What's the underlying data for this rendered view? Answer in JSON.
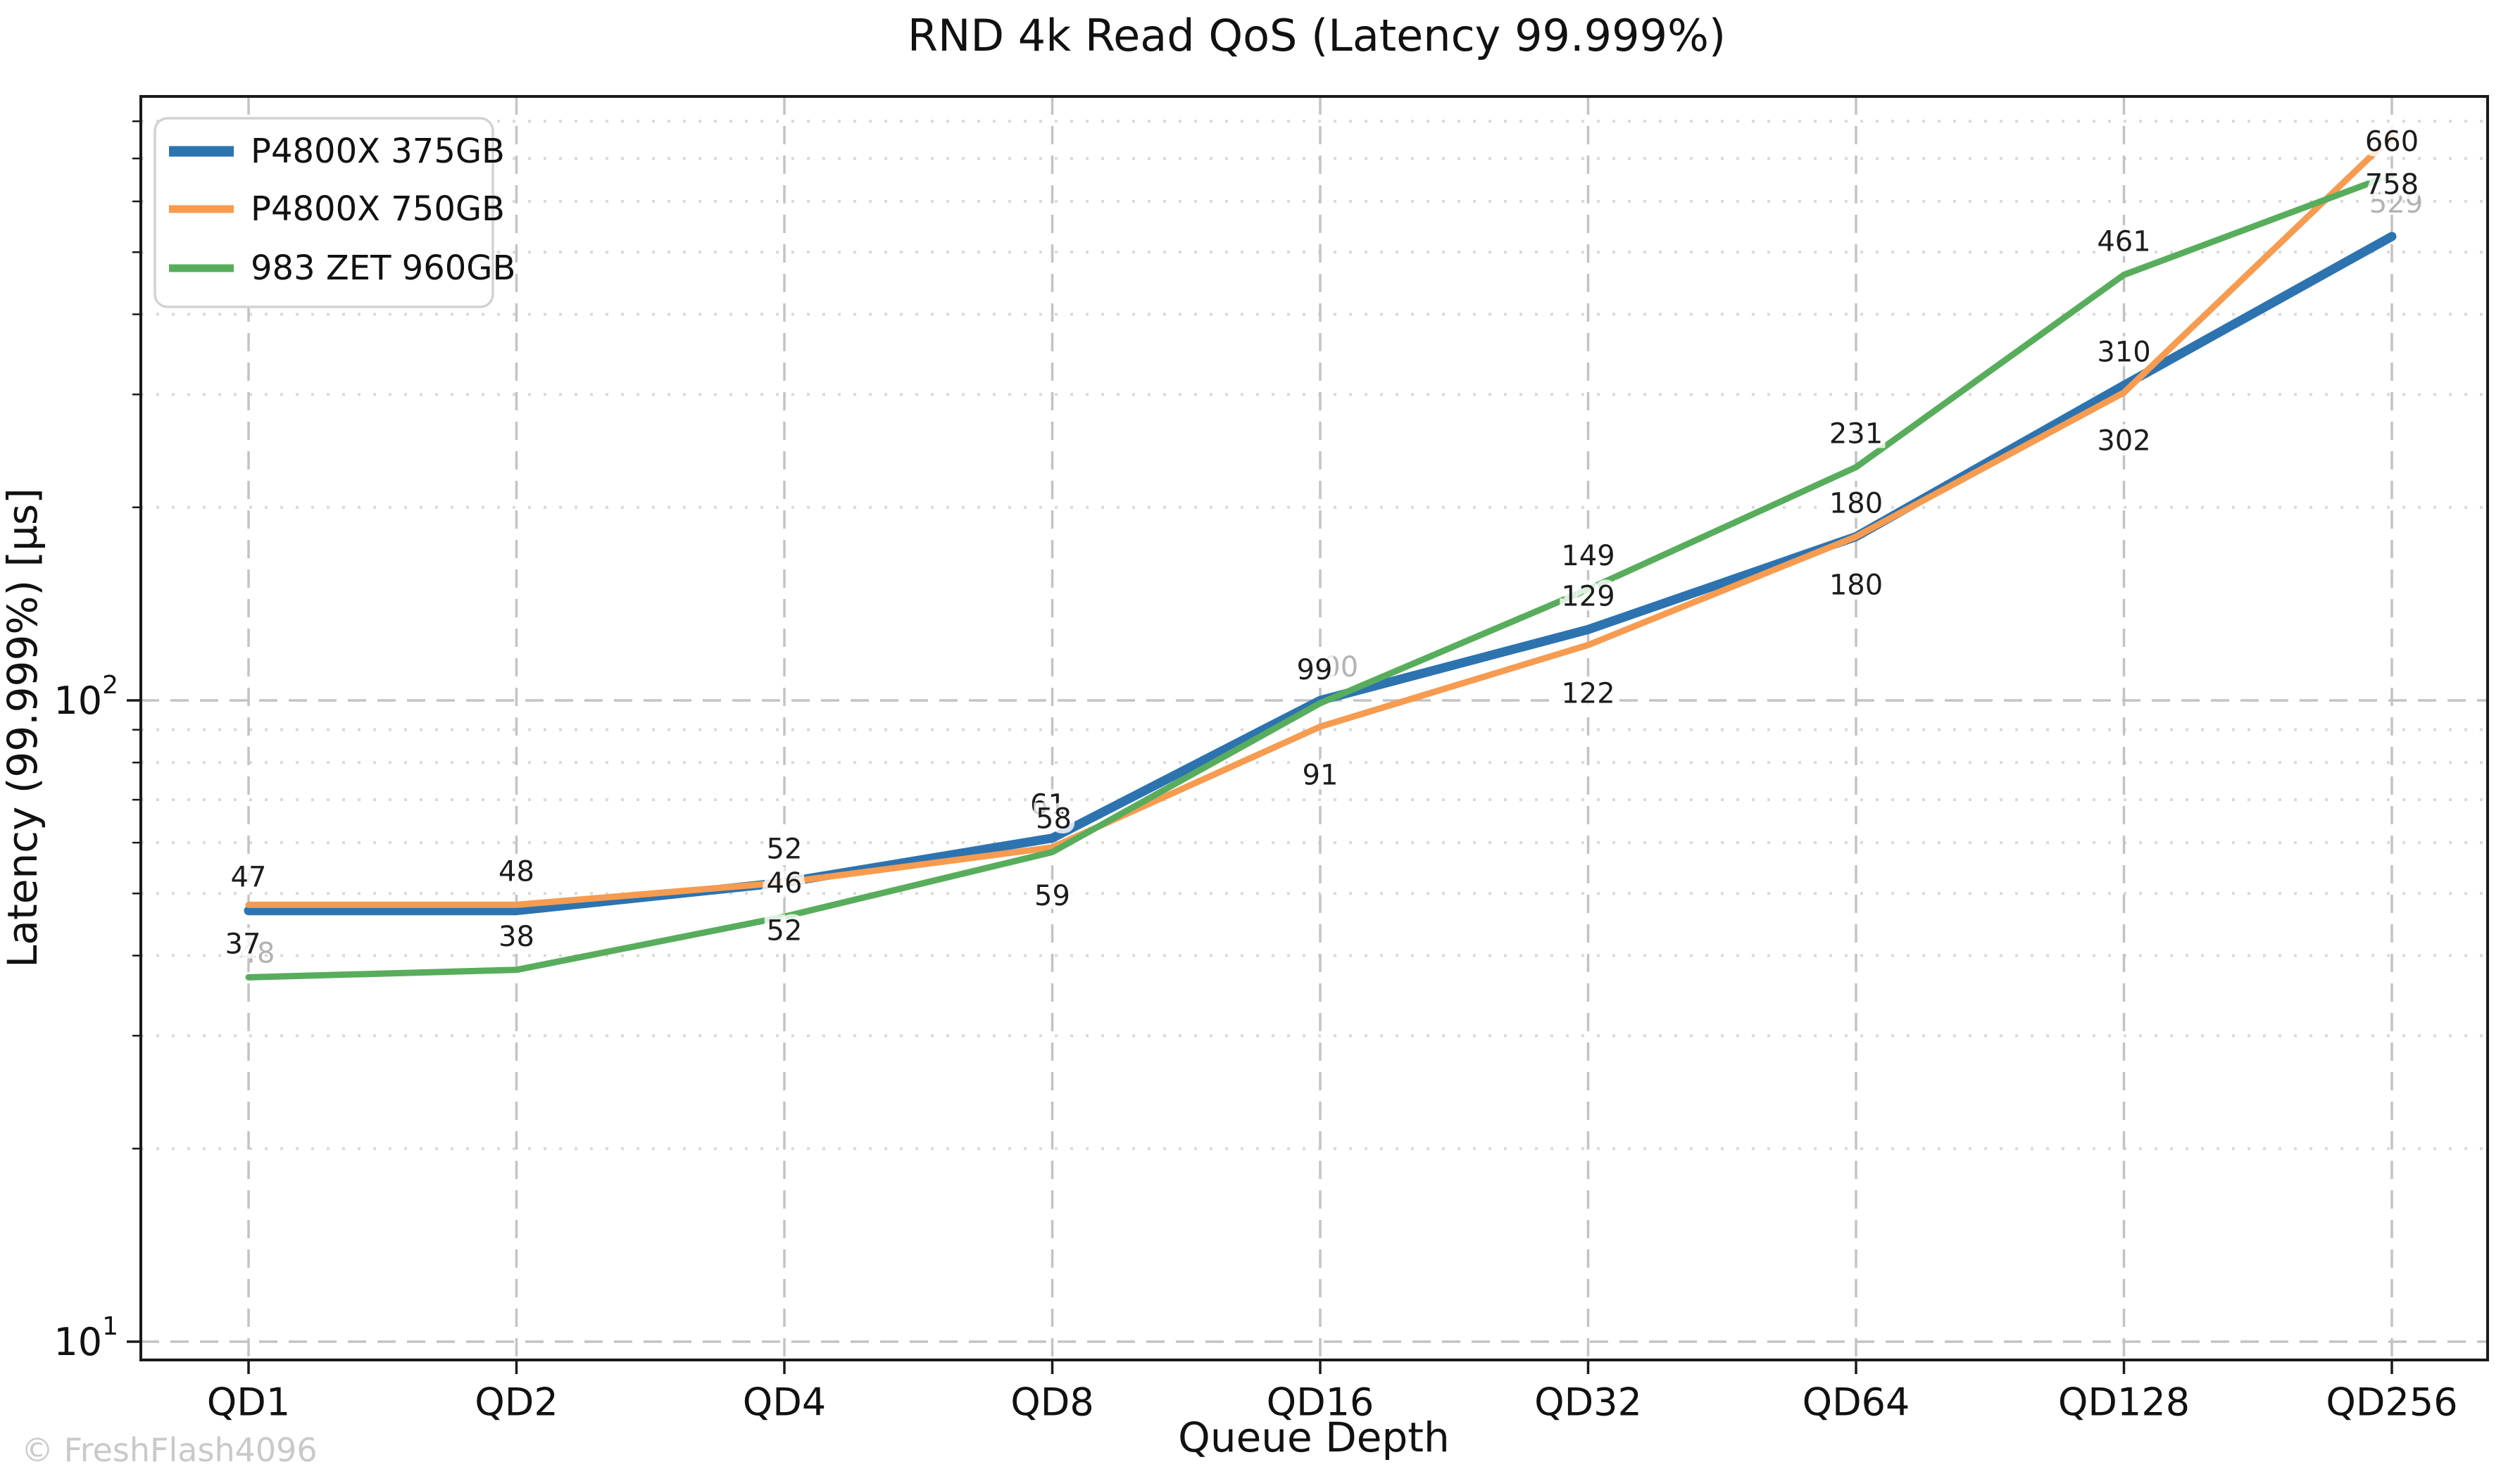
{
  "title": "RND 4k Read QoS (Latency 99.999%)",
  "watermark": "© FreshFlash4096",
  "axes": {
    "x_label": "Queue Depth",
    "y_label": "Latency (99.999%) [µs]",
    "x_tick_labels": [
      "QD1",
      "QD2",
      "QD4",
      "QD8",
      "QD16",
      "QD32",
      "QD64",
      "QD128",
      "QD256"
    ],
    "y_tick_labels": [
      {
        "base": "10",
        "exp": "1",
        "value": 10
      },
      {
        "base": "10",
        "exp": "2",
        "value": 100
      }
    ]
  },
  "legend": {
    "position": "upper-left",
    "entries": [
      {
        "label": "P4800X 375GB",
        "color": "#2d73b0",
        "sample_width": 13
      },
      {
        "label": "P4800X 750GB",
        "color": "#f79b50",
        "sample_width": 9
      },
      {
        "label": "983 ZET 960GB",
        "color": "#58ad5c",
        "sample_width": 9
      }
    ]
  },
  "chart_data": {
    "type": "line",
    "title": "RND 4k Read QoS (Latency 99.999%)",
    "xlabel": "Queue Depth",
    "ylabel": "Latency (99.999%) [µs]",
    "yscale": "log",
    "ylim": [
      9.3,
      875
    ],
    "grid": {
      "y_major": [
        10,
        100
      ],
      "y_minor": [
        20,
        30,
        40,
        50,
        60,
        70,
        80,
        90,
        200,
        300,
        400,
        500,
        600,
        700,
        800
      ],
      "x_gridlines_at_every_category": true
    },
    "categories": [
      "QD1",
      "QD2",
      "QD4",
      "QD8",
      "QD16",
      "QD32",
      "QD64",
      "QD128",
      "QD256"
    ],
    "series": [
      {
        "name": "P4800X 375GB",
        "color": "#2d73b0",
        "line_width": 13,
        "values": [
          47,
          47,
          52,
          61,
          100,
          129,
          180,
          310,
          529
        ]
      },
      {
        "name": "P4800X 750GB",
        "color": "#f79b50",
        "line_width": 9,
        "values": [
          48,
          48,
          52,
          59,
          91,
          122,
          180,
          302,
          758
        ]
      },
      {
        "name": "983 ZET 960GB",
        "color": "#58ad5c",
        "line_width": 9,
        "values": [
          37,
          38,
          46,
          58,
          99,
          149,
          231,
          461,
          660
        ]
      }
    ],
    "point_labels": [
      {
        "series": 0,
        "qd": 0,
        "text": "47",
        "placement": "above",
        "dim": false,
        "dx": 0
      },
      {
        "series": 0,
        "qd": 2,
        "text": "52",
        "placement": "above",
        "dim": false,
        "dx": 0
      },
      {
        "series": 0,
        "qd": 3,
        "text": "61",
        "placement": "above",
        "dim": false,
        "dx": -6
      },
      {
        "series": 0,
        "qd": 4,
        "text": "100",
        "placement": "above",
        "dim": true,
        "dx": 16
      },
      {
        "series": 0,
        "qd": 5,
        "text": "129",
        "placement": "above",
        "dim": false,
        "dx": 0
      },
      {
        "series": 0,
        "qd": 6,
        "text": "180",
        "placement": "above",
        "dim": false,
        "dx": 0
      },
      {
        "series": 0,
        "qd": 7,
        "text": "310",
        "placement": "above",
        "dim": false,
        "dx": 0
      },
      {
        "series": 0,
        "qd": 8,
        "text": "529",
        "placement": "above",
        "dim": true,
        "dx": 6
      },
      {
        "series": 1,
        "qd": 0,
        "text": "48",
        "placement": "below",
        "dim": true,
        "dx": 12
      },
      {
        "series": 1,
        "qd": 1,
        "text": "48",
        "placement": "above",
        "dim": false,
        "dx": 0
      },
      {
        "series": 1,
        "qd": 2,
        "text": "52",
        "placement": "below",
        "dim": false,
        "dx": 0
      },
      {
        "series": 1,
        "qd": 3,
        "text": "59",
        "placement": "below",
        "dim": false,
        "dx": 0
      },
      {
        "series": 1,
        "qd": 4,
        "text": "91",
        "placement": "below",
        "dim": false,
        "dx": 0
      },
      {
        "series": 1,
        "qd": 5,
        "text": "122",
        "placement": "below",
        "dim": false,
        "dx": 0
      },
      {
        "series": 1,
        "qd": 6,
        "text": "180",
        "placement": "below",
        "dim": false,
        "dx": 0
      },
      {
        "series": 1,
        "qd": 7,
        "text": "302",
        "placement": "below",
        "dim": false,
        "dx": 0
      },
      {
        "series": 1,
        "qd": 8,
        "text": "758",
        "placement": "below",
        "dim": false,
        "dx": 0
      },
      {
        "series": 2,
        "qd": 0,
        "text": "37",
        "placement": "above",
        "dim": false,
        "dx": -8
      },
      {
        "series": 2,
        "qd": 1,
        "text": "38",
        "placement": "above",
        "dim": false,
        "dx": 0
      },
      {
        "series": 2,
        "qd": 2,
        "text": "46",
        "placement": "above",
        "dim": false,
        "dx": 0
      },
      {
        "series": 2,
        "qd": 3,
        "text": "58",
        "placement": "above",
        "dim": false,
        "dx": 2
      },
      {
        "series": 2,
        "qd": 4,
        "text": "99",
        "placement": "above",
        "dim": false,
        "dx": -8
      },
      {
        "series": 2,
        "qd": 5,
        "text": "149",
        "placement": "above",
        "dim": false,
        "dx": 0
      },
      {
        "series": 2,
        "qd": 6,
        "text": "231",
        "placement": "above",
        "dim": false,
        "dx": 0
      },
      {
        "series": 2,
        "qd": 7,
        "text": "461",
        "placement": "above",
        "dim": false,
        "dx": 0
      },
      {
        "series": 2,
        "qd": 8,
        "text": "660",
        "placement": "above",
        "dim": false,
        "dx": 0
      }
    ],
    "legend_entries": [
      "P4800X 375GB",
      "P4800X 750GB",
      "983 ZET 960GB"
    ]
  },
  "style": {
    "text_color": "#111111",
    "dim_label_color": "#b3b3b3",
    "grid_major_color": "#c3c3c3",
    "grid_minor_color": "#d9d9d9",
    "spine_color": "#1a1a1a",
    "legend_border_color": "#d2d2d2"
  }
}
